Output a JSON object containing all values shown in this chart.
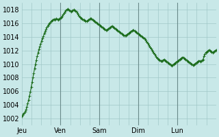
{
  "title": "",
  "background_color": "#c8e8e8",
  "line_color": "#1a6b1a",
  "grid_color": "#a0c8c8",
  "vline_color": "#6a8a8a",
  "xlabels": [
    "Jeu",
    "Ven",
    "Sam",
    "Dim",
    "Lun"
  ],
  "ylim": [
    1001,
    1019
  ],
  "yticks": [
    1002,
    1004,
    1006,
    1008,
    1010,
    1012,
    1014,
    1016,
    1018
  ],
  "ylabel_fontsize": 7,
  "xlabel_fontsize": 7,
  "y_values": [
    1002.3,
    1002.5,
    1002.7,
    1002.8,
    1003.0,
    1003.3,
    1003.7,
    1004.2,
    1004.7,
    1005.3,
    1005.9,
    1006.6,
    1007.3,
    1008.0,
    1008.7,
    1009.4,
    1010.0,
    1010.6,
    1011.2,
    1011.7,
    1012.2,
    1012.6,
    1013.0,
    1013.4,
    1013.8,
    1014.1,
    1014.5,
    1014.8,
    1015.1,
    1015.4,
    1015.6,
    1015.8,
    1016.0,
    1016.1,
    1016.3,
    1016.4,
    1016.5,
    1016.6,
    1016.5,
    1016.6,
    1016.7,
    1016.6,
    1016.5,
    1016.6,
    1016.7,
    1016.8,
    1016.9,
    1017.1,
    1017.3,
    1017.5,
    1017.7,
    1017.9,
    1018.0,
    1018.1,
    1018.0,
    1017.9,
    1017.8,
    1017.7,
    1017.8,
    1017.9,
    1018.0,
    1017.9,
    1017.8,
    1017.7,
    1017.5,
    1017.3,
    1017.1,
    1016.9,
    1016.8,
    1016.7,
    1016.6,
    1016.5,
    1016.5,
    1016.4,
    1016.3,
    1016.3,
    1016.4,
    1016.5,
    1016.6,
    1016.7,
    1016.7,
    1016.6,
    1016.5,
    1016.4,
    1016.3,
    1016.2,
    1016.1,
    1016.0,
    1015.9,
    1015.8,
    1015.7,
    1015.6,
    1015.5,
    1015.4,
    1015.3,
    1015.2,
    1015.1,
    1015.0,
    1015.0,
    1015.1,
    1015.2,
    1015.3,
    1015.4,
    1015.5,
    1015.6,
    1015.5,
    1015.4,
    1015.3,
    1015.2,
    1015.1,
    1015.0,
    1014.9,
    1014.8,
    1014.7,
    1014.6,
    1014.5,
    1014.4,
    1014.3,
    1014.2,
    1014.2,
    1014.2,
    1014.3,
    1014.4,
    1014.5,
    1014.6,
    1014.7,
    1014.8,
    1014.9,
    1015.0,
    1015.0,
    1014.9,
    1014.8,
    1014.7,
    1014.6,
    1014.5,
    1014.4,
    1014.3,
    1014.2,
    1014.1,
    1014.0,
    1013.9,
    1013.8,
    1013.7,
    1013.5,
    1013.3,
    1013.1,
    1012.9,
    1012.7,
    1012.5,
    1012.3,
    1012.1,
    1011.9,
    1011.7,
    1011.5,
    1011.3,
    1011.1,
    1010.9,
    1010.8,
    1010.7,
    1010.6,
    1010.5,
    1010.5,
    1010.5,
    1010.6,
    1010.7,
    1010.6,
    1010.5,
    1010.4,
    1010.3,
    1010.2,
    1010.1,
    1010.0,
    1009.9,
    1009.8,
    1009.9,
    1010.0,
    1010.1,
    1010.2,
    1010.3,
    1010.4,
    1010.5,
    1010.6,
    1010.7,
    1010.8,
    1010.9,
    1011.0,
    1011.0,
    1010.9,
    1010.8,
    1010.7,
    1010.6,
    1010.5,
    1010.4,
    1010.3,
    1010.2,
    1010.1,
    1010.0,
    1009.9,
    1009.9,
    1010.0,
    1010.1,
    1010.2,
    1010.3,
    1010.4,
    1010.5,
    1010.5,
    1010.4,
    1010.5,
    1010.6,
    1010.7,
    1011.2,
    1011.5,
    1011.7,
    1011.8,
    1011.9,
    1012.0,
    1012.1,
    1012.0,
    1011.9,
    1011.8,
    1011.7,
    1011.8,
    1011.9,
    1012.0,
    1012.1
  ],
  "n_days": 5,
  "points_per_day": 48
}
